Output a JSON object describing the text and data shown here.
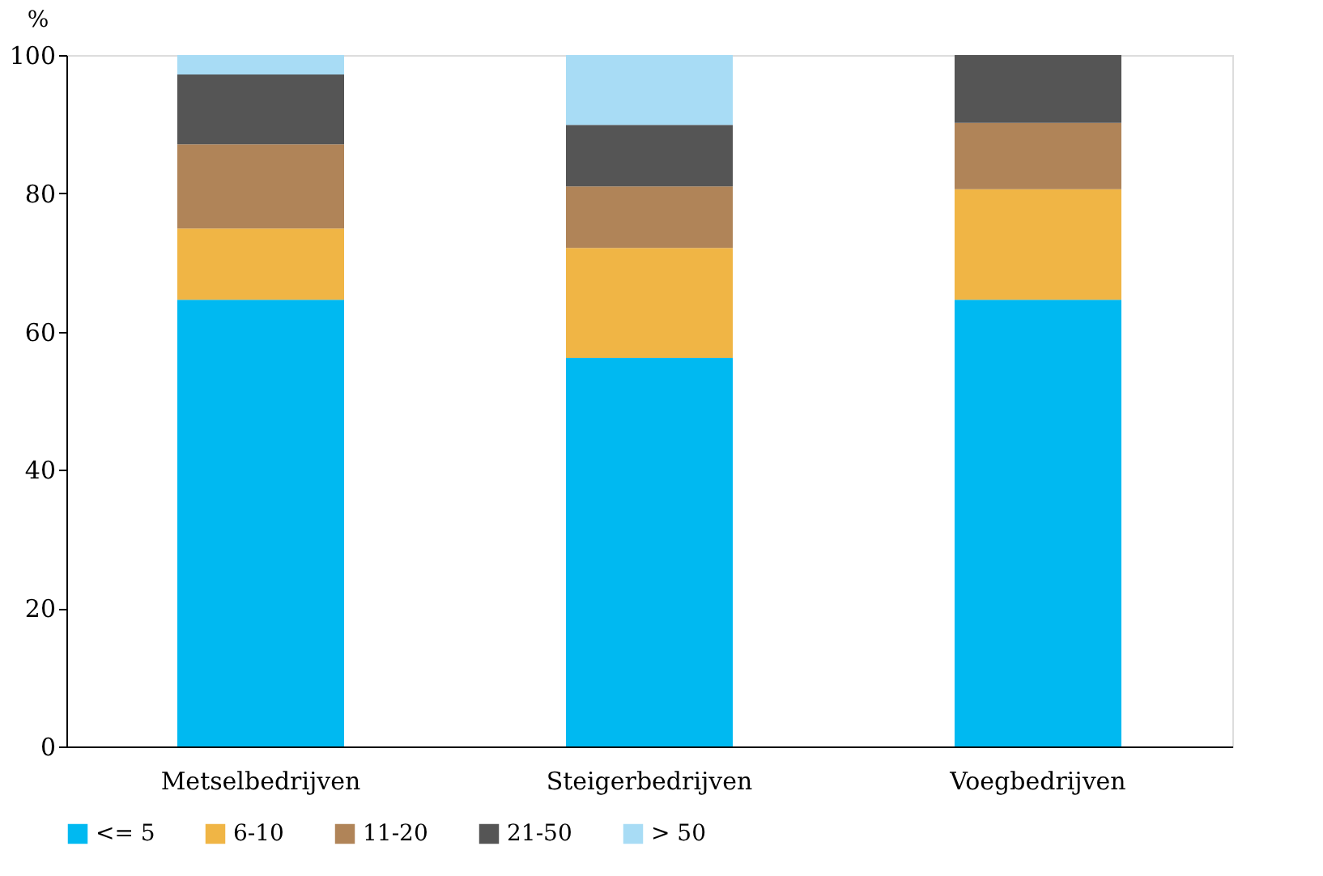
{
  "chart_data": {
    "type": "bar",
    "stacked": true,
    "ylabel": "%",
    "categories": [
      "Metselbedrijven",
      "Steigerbedrijven",
      "Voegbedrijven"
    ],
    "series": [
      {
        "name": "<= 5",
        "color": "#00b9f1",
        "values": [
          64.6,
          56.2,
          64.6
        ]
      },
      {
        "name": "6-10",
        "color": "#f0b545",
        "values": [
          10.3,
          15.9,
          16.0
        ]
      },
      {
        "name": "11-20",
        "color": "#b08458",
        "values": [
          12.2,
          8.9,
          9.6
        ]
      },
      {
        "name": "21-50",
        "color": "#555555",
        "values": [
          10.1,
          8.9,
          9.8
        ]
      },
      {
        "name": "> 50",
        "color": "#a8dcf5",
        "values": [
          2.8,
          10.1,
          0
        ]
      }
    ],
    "ylim": [
      0,
      100
    ],
    "yticks": [
      0,
      20,
      40,
      60,
      80,
      100
    ],
    "grid": false,
    "legend": "bottom"
  }
}
